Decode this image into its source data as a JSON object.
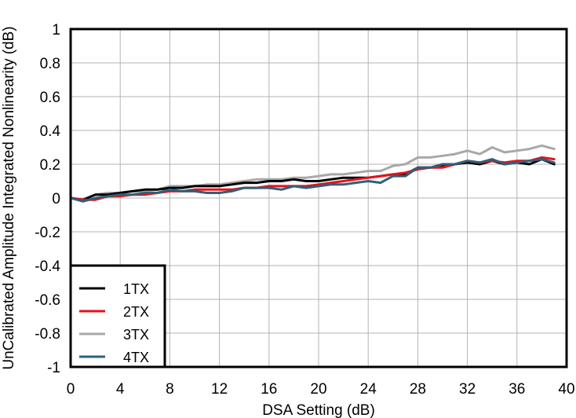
{
  "chart_data": {
    "type": "line",
    "xlabel": "DSA Setting (dB)",
    "ylabel": "UnCalibrated Amplitude Integrated Nonlinearity (dB)",
    "xlim": [
      0,
      40
    ],
    "ylim": [
      -1,
      1
    ],
    "x_ticks": [
      "0",
      "4",
      "8",
      "12",
      "16",
      "20",
      "24",
      "28",
      "32",
      "36",
      "40"
    ],
    "y_ticks": [
      "1",
      "0.8",
      "0.6",
      "0.4",
      "0.2",
      "0",
      "-0.2",
      "-0.4",
      "-0.6",
      "-0.8",
      "-1"
    ],
    "grid": true,
    "legend_position": "bottom-left",
    "x": [
      0,
      1,
      2,
      3,
      4,
      5,
      6,
      7,
      8,
      9,
      10,
      11,
      12,
      13,
      14,
      15,
      16,
      17,
      18,
      19,
      20,
      21,
      22,
      23,
      24,
      25,
      26,
      27,
      28,
      29,
      30,
      31,
      32,
      33,
      34,
      35,
      36,
      37,
      38,
      39
    ],
    "series": [
      {
        "name": "1TX",
        "color": "#000000",
        "values": [
          0,
          -0.01,
          0.02,
          0.02,
          0.03,
          0.04,
          0.05,
          0.05,
          0.06,
          0.06,
          0.07,
          0.07,
          0.07,
          0.08,
          0.09,
          0.09,
          0.1,
          0.1,
          0.11,
          0.1,
          0.1,
          0.11,
          0.12,
          0.12,
          0.12,
          0.13,
          0.14,
          0.14,
          0.18,
          0.18,
          0.19,
          0.2,
          0.21,
          0.2,
          0.22,
          0.2,
          0.21,
          0.2,
          0.23,
          0.2
        ]
      },
      {
        "name": "2TX",
        "color": "#e8101a",
        "values": [
          0,
          -0.01,
          -0.01,
          0.01,
          0.01,
          0.02,
          0.02,
          0.03,
          0.04,
          0.04,
          0.05,
          0.05,
          0.05,
          0.05,
          0.06,
          0.06,
          0.07,
          0.07,
          0.07,
          0.07,
          0.08,
          0.09,
          0.1,
          0.11,
          0.12,
          0.13,
          0.14,
          0.15,
          0.17,
          0.18,
          0.18,
          0.2,
          0.22,
          0.21,
          0.22,
          0.21,
          0.22,
          0.22,
          0.24,
          0.23
        ]
      },
      {
        "name": "3TX",
        "color": "#a8a8a8",
        "values": [
          0,
          -0.01,
          0.02,
          0.03,
          0.03,
          0.04,
          0.04,
          0.05,
          0.07,
          0.07,
          0.07,
          0.08,
          0.08,
          0.09,
          0.1,
          0.11,
          0.11,
          0.11,
          0.12,
          0.12,
          0.13,
          0.14,
          0.14,
          0.15,
          0.16,
          0.16,
          0.19,
          0.2,
          0.24,
          0.24,
          0.25,
          0.26,
          0.28,
          0.26,
          0.3,
          0.27,
          0.28,
          0.29,
          0.31,
          0.29
        ]
      },
      {
        "name": "4TX",
        "color": "#2f6079",
        "values": [
          0,
          -0.02,
          0,
          0.01,
          0.02,
          0.02,
          0.03,
          0.03,
          0.05,
          0.04,
          0.04,
          0.03,
          0.03,
          0.04,
          0.06,
          0.06,
          0.06,
          0.05,
          0.07,
          0.06,
          0.07,
          0.08,
          0.08,
          0.09,
          0.1,
          0.09,
          0.13,
          0.13,
          0.18,
          0.18,
          0.2,
          0.2,
          0.22,
          0.21,
          0.23,
          0.2,
          0.21,
          0.22,
          0.23,
          0.21
        ]
      }
    ]
  }
}
